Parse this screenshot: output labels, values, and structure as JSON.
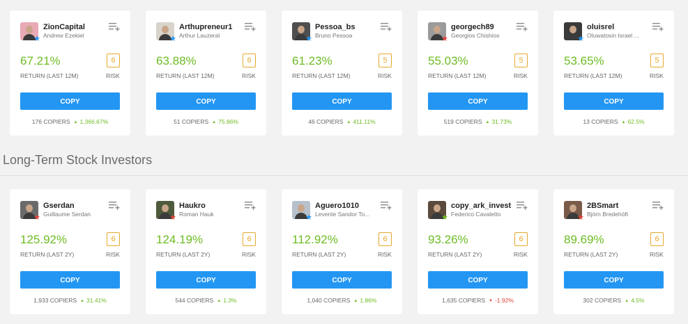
{
  "top_row": [
    {
      "username": "ZionCapital",
      "name": "Andrew Ezekiel",
      "gain": "67.21%",
      "gain_label": "RETURN (LAST 12M)",
      "risk": "6",
      "risk_label": "RISK",
      "copy_label": "COPY",
      "copiers": "176 COPIERS",
      "copiers_change": "1,366.67%",
      "trend": "up",
      "status_color": "#2396f3",
      "avatar_color": "#e9a9b5"
    },
    {
      "username": "Arthupreneur1",
      "name": "Arthur Lauzeral",
      "gain": "63.88%",
      "gain_label": "RETURN (LAST 12M)",
      "risk": "6",
      "risk_label": "RISK",
      "copy_label": "COPY",
      "copiers": "51 COPIERS",
      "copiers_change": "75.86%",
      "trend": "up",
      "status_color": "#2396f3",
      "avatar_color": "#d8d4cc"
    },
    {
      "username": "Pessoa_bs",
      "name": "Bruno Pessoa",
      "gain": "61.23%",
      "gain_label": "RETURN (LAST 12M)",
      "risk": "5",
      "risk_label": "RISK",
      "copy_label": "COPY",
      "copiers": "46 COPIERS",
      "copiers_change": "411.11%",
      "trend": "up",
      "status_color": "#2396f3",
      "avatar_color": "#4f4f4f"
    },
    {
      "username": "georgech89",
      "name": "Georgios Chishios",
      "gain": "55.03%",
      "gain_label": "RETURN (LAST 12M)",
      "risk": "5",
      "risk_label": "RISK",
      "copy_label": "COPY",
      "copiers": "519 COPIERS",
      "copiers_change": "31.73%",
      "trend": "up",
      "status_color": "#e0443a",
      "avatar_color": "#9b9b9b"
    },
    {
      "username": "oluisrel",
      "name": "Oluwatosin Israel ...",
      "gain": "53.65%",
      "gain_label": "RETURN (LAST 12M)",
      "risk": "5",
      "risk_label": "RISK",
      "copy_label": "COPY",
      "copiers": "13 COPIERS",
      "copiers_change": "62.5%",
      "trend": "up",
      "status_color": "#2396f3",
      "avatar_color": "#3a3a3a"
    }
  ],
  "section_title": "Long-Term Stock Investors",
  "bottom_row": [
    {
      "username": "Gserdan",
      "name": "Guillaume Serdan",
      "gain": "125.92%",
      "gain_label": "RETURN (LAST 2Y)",
      "risk": "6",
      "risk_label": "RISK",
      "copy_label": "COPY",
      "copiers": "1,933 COPIERS",
      "copiers_change": "31.41%",
      "trend": "up",
      "status_color": "#e0443a",
      "avatar_color": "#6a6a6a"
    },
    {
      "username": "Haukro",
      "name": "Roman Hauk",
      "gain": "124.19%",
      "gain_label": "RETURN (LAST 2Y)",
      "risk": "6",
      "risk_label": "RISK",
      "copy_label": "COPY",
      "copiers": "544 COPIERS",
      "copiers_change": "1.3%",
      "trend": "up",
      "status_color": "#e0443a",
      "avatar_color": "#4e5a3c"
    },
    {
      "username": "Aguero1010",
      "name": "Levente Sandor To...",
      "gain": "112.92%",
      "gain_label": "RETURN (LAST 2Y)",
      "risk": "6",
      "risk_label": "RISK",
      "copy_label": "COPY",
      "copiers": "1,040 COPIERS",
      "copiers_change": "1.86%",
      "trend": "up",
      "status_color": "#2396f3",
      "avatar_color": "#b7c1cc"
    },
    {
      "username": "copy_ark_invest",
      "name": "Federico Cavaletto",
      "gain": "93.26%",
      "gain_label": "RETURN (LAST 2Y)",
      "risk": "6",
      "risk_label": "RISK",
      "copy_label": "COPY",
      "copiers": "1,635 COPIERS",
      "copiers_change": "-1.92%",
      "trend": "down",
      "status_color": "#6ebc24",
      "avatar_color": "#5b4a3c"
    },
    {
      "username": "2BSmart",
      "name": "Björn Bredehöft",
      "gain": "89.69%",
      "gain_label": "RETURN (LAST 2Y)",
      "risk": "6",
      "risk_label": "RISK",
      "copy_label": "COPY",
      "copiers": "302 COPIERS",
      "copiers_change": "4.5%",
      "trend": "up",
      "status_color": "#e0443a",
      "avatar_color": "#7a5a48"
    }
  ]
}
